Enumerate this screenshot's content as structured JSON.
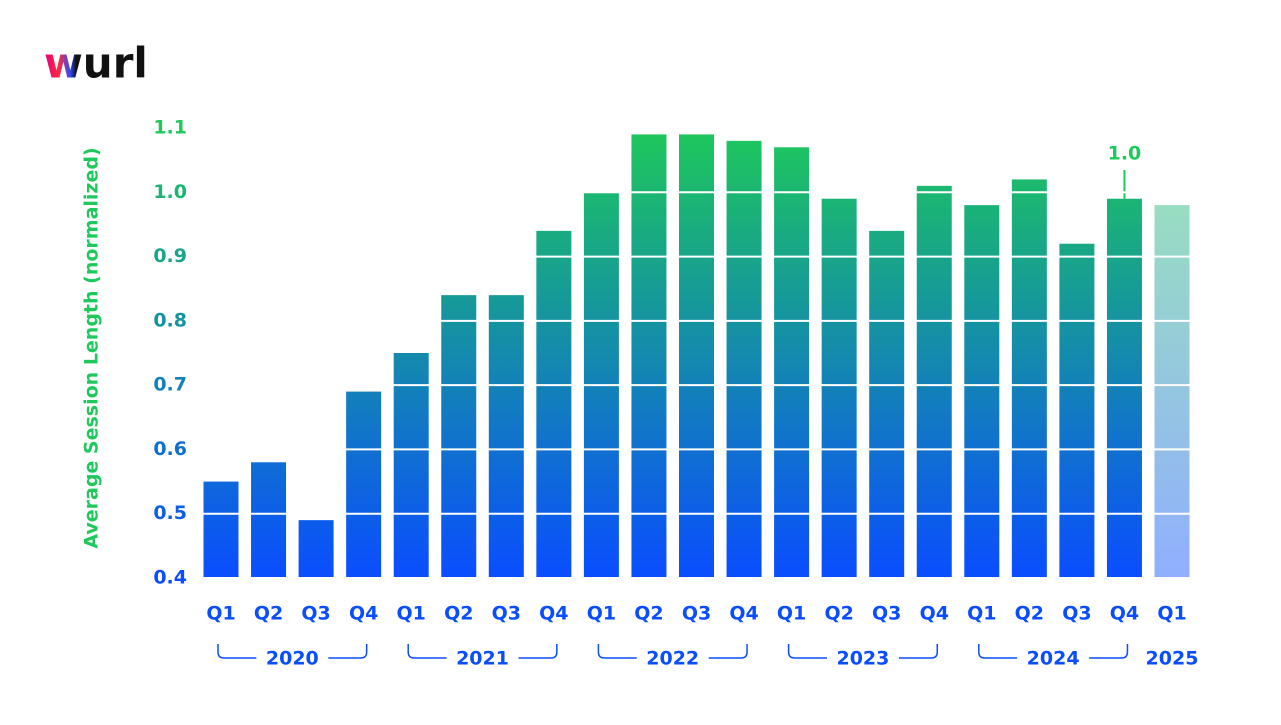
{
  "logo": "wurl",
  "chart_data": {
    "type": "bar",
    "y_label": "Average Session Length (normalized)",
    "ylim": [
      0.4,
      1.1
    ],
    "yticks": [
      {
        "value": 0.4,
        "label": "0.4"
      },
      {
        "value": 0.5,
        "label": "0.5"
      },
      {
        "value": 0.6,
        "label": "0.6"
      },
      {
        "value": 0.7,
        "label": "0.7"
      },
      {
        "value": 0.8,
        "label": "0.8"
      },
      {
        "value": 0.9,
        "label": "0.9"
      },
      {
        "value": 1.0,
        "label": "1.0"
      },
      {
        "value": 1.1,
        "label": "1.1"
      }
    ],
    "grid": true,
    "color_bottom": "#0a4dff",
    "color_top": "#1ec85a",
    "groups": [
      {
        "name": "2020",
        "categories": [
          "Q1",
          "Q2",
          "Q3",
          "Q4"
        ],
        "values": [
          0.55,
          0.58,
          0.49,
          0.69
        ]
      },
      {
        "name": "2021",
        "categories": [
          "Q1",
          "Q2",
          "Q3",
          "Q4"
        ],
        "values": [
          0.75,
          0.84,
          0.84,
          0.94
        ]
      },
      {
        "name": "2022",
        "categories": [
          "Q1",
          "Q2",
          "Q3",
          "Q4"
        ],
        "values": [
          1.0,
          1.09,
          1.09,
          1.08
        ]
      },
      {
        "name": "2023",
        "categories": [
          "Q1",
          "Q2",
          "Q3",
          "Q4"
        ],
        "values": [
          1.07,
          0.99,
          0.94,
          1.01
        ]
      },
      {
        "name": "2024",
        "categories": [
          "Q1",
          "Q2",
          "Q3",
          "Q4"
        ],
        "values": [
          0.98,
          1.02,
          0.92,
          0.99
        ],
        "value_labels": [
          null,
          null,
          null,
          "1.0"
        ]
      },
      {
        "name": "2025",
        "categories": [
          "Q1"
        ],
        "values": [
          0.98
        ],
        "opacity": 0.45
      }
    ]
  }
}
